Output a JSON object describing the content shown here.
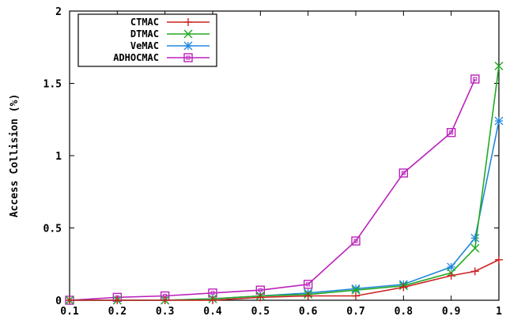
{
  "chart_data": {
    "type": "line",
    "ylabel": "Access Collision (%)",
    "xlabel": "",
    "xlim": [
      0.1,
      1.0
    ],
    "ylim": [
      0,
      2
    ],
    "x_ticks": [
      "0.1",
      "0.2",
      "0.3",
      "0.4",
      "0.5",
      "0.6",
      "0.7",
      "0.8",
      "0.9",
      "1"
    ],
    "y_ticks": [
      "0",
      "0.5",
      "1",
      "1.5",
      "2"
    ],
    "legend_position": "top-left",
    "grid": false,
    "series": [
      {
        "name": "CTMAC",
        "color": "#cc2222",
        "marker": "plus",
        "points": [
          [
            0.1,
            0.0
          ],
          [
            0.2,
            0.0
          ],
          [
            0.3,
            0.0
          ],
          [
            0.4,
            0.0
          ],
          [
            0.5,
            0.02
          ],
          [
            0.6,
            0.03
          ],
          [
            0.7,
            0.03
          ],
          [
            0.8,
            0.09
          ],
          [
            0.9,
            0.17
          ],
          [
            0.95,
            0.2
          ],
          [
            1.0,
            0.28
          ]
        ]
      },
      {
        "name": "DTMAC",
        "color": "#22aa22",
        "marker": "cross",
        "points": [
          [
            0.1,
            0.0
          ],
          [
            0.2,
            0.0
          ],
          [
            0.3,
            0.0
          ],
          [
            0.4,
            0.01
          ],
          [
            0.5,
            0.03
          ],
          [
            0.6,
            0.04
          ],
          [
            0.7,
            0.07
          ],
          [
            0.8,
            0.1
          ],
          [
            0.9,
            0.19
          ],
          [
            0.95,
            0.36
          ],
          [
            1.0,
            1.62
          ]
        ]
      },
      {
        "name": "VeMAC",
        "color": "#2288dd",
        "marker": "star",
        "points": [
          [
            0.1,
            0.0
          ],
          [
            0.2,
            0.0
          ],
          [
            0.3,
            0.0
          ],
          [
            0.4,
            0.01
          ],
          [
            0.5,
            0.03
          ],
          [
            0.6,
            0.05
          ],
          [
            0.7,
            0.08
          ],
          [
            0.8,
            0.11
          ],
          [
            0.9,
            0.23
          ],
          [
            0.95,
            0.43
          ],
          [
            1.0,
            1.24
          ]
        ]
      },
      {
        "name": "ADHOCMAC",
        "color": "#bb22bb",
        "marker": "square",
        "points": [
          [
            0.1,
            0.0
          ],
          [
            0.2,
            0.02
          ],
          [
            0.3,
            0.03
          ],
          [
            0.4,
            0.05
          ],
          [
            0.5,
            0.07
          ],
          [
            0.6,
            0.11
          ],
          [
            0.7,
            0.41
          ],
          [
            0.8,
            0.88
          ],
          [
            0.9,
            1.16
          ],
          [
            0.95,
            1.53
          ]
        ]
      }
    ]
  }
}
